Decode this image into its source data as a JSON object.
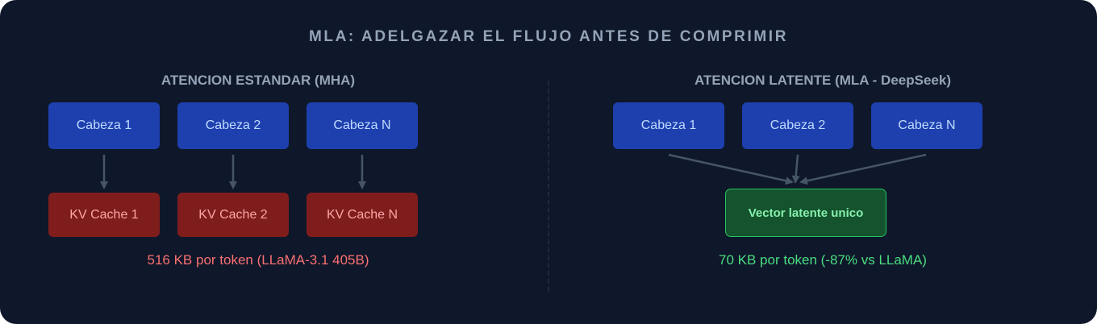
{
  "title": "MLA: ADELGAZAR EL FLUJO ANTES DE COMPRIMIR",
  "left": {
    "heading": "ATENCION ESTANDAR (MHA)",
    "heads": [
      "Cabeza 1",
      "Cabeza 2",
      "Cabeza N"
    ],
    "caches": [
      "KV Cache 1",
      "KV Cache 2",
      "KV Cache N"
    ],
    "note": "516 KB por token (LLaMA-3.1 405B)"
  },
  "right": {
    "heading": "ATENCION LATENTE (MLA - DeepSeek)",
    "heads": [
      "Cabeza 1",
      "Cabeza 2",
      "Cabeza N"
    ],
    "latent": "Vector latente unico",
    "note": "70 KB por token (-87% vs LLaMA)"
  },
  "colors": {
    "head": "#1e40af",
    "cache": "#7f1d1d",
    "latent": "#14532d",
    "bad": "#f87171",
    "good": "#4ade80"
  }
}
